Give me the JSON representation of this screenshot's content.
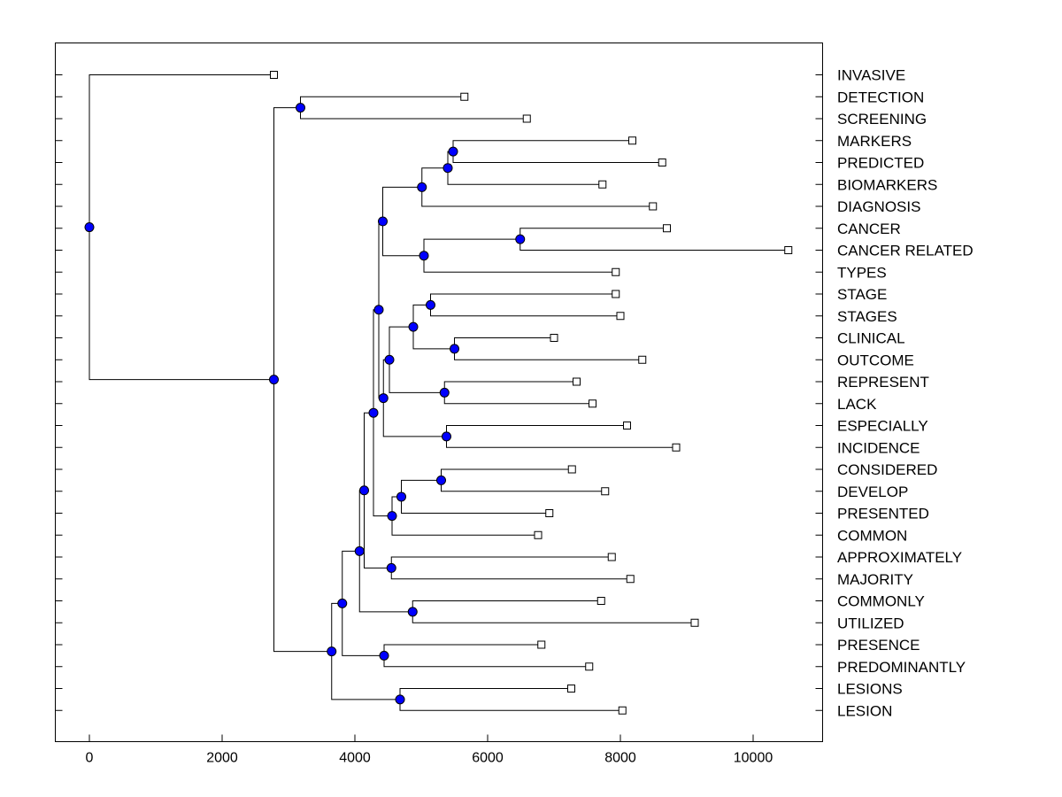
{
  "chart_data": {
    "type": "dendrogram",
    "title": "",
    "xlabel": "",
    "ylabel": "",
    "xlim": [
      -500,
      11000
    ],
    "xticks": [
      0,
      2000,
      4000,
      6000,
      8000,
      10000
    ],
    "xtick_labels": [
      "0",
      "2000",
      "4000",
      "6000",
      "8000",
      "10000"
    ],
    "colors": {
      "node": "#0000ff",
      "line": "#000000",
      "leaf_fill": "#ffffff"
    },
    "leaves": [
      {
        "label": "INVASIVE",
        "x": 2780
      },
      {
        "label": "DETECTION",
        "x": 5650
      },
      {
        "label": "SCREENING",
        "x": 6590
      },
      {
        "label": "MARKERS",
        "x": 8180
      },
      {
        "label": "PREDICTED",
        "x": 8630
      },
      {
        "label": "BIOMARKERS",
        "x": 7730
      },
      {
        "label": "DIAGNOSIS",
        "x": 8490
      },
      {
        "label": "CANCER",
        "x": 8700
      },
      {
        "label": "CANCER RELATED",
        "x": 10530
      },
      {
        "label": "TYPES",
        "x": 7930
      },
      {
        "label": "STAGE",
        "x": 7930
      },
      {
        "label": "STAGES",
        "x": 8000
      },
      {
        "label": "CLINICAL",
        "x": 7000
      },
      {
        "label": "OUTCOME",
        "x": 8330
      },
      {
        "label": "REPRESENT",
        "x": 7340
      },
      {
        "label": "LACK",
        "x": 7580
      },
      {
        "label": "ESPECIALLY",
        "x": 8100
      },
      {
        "label": "INCIDENCE",
        "x": 8840
      },
      {
        "label": "CONSIDERED",
        "x": 7270
      },
      {
        "label": "DEVELOP",
        "x": 7770
      },
      {
        "label": "PRESENTED",
        "x": 6930
      },
      {
        "label": "COMMON",
        "x": 6760
      },
      {
        "label": "APPROXIMATELY",
        "x": 7870
      },
      {
        "label": "MAJORITY",
        "x": 8150
      },
      {
        "label": "COMMONLY",
        "x": 7710
      },
      {
        "label": "UTILIZED",
        "x": 9120
      },
      {
        "label": "PRESENCE",
        "x": 6810
      },
      {
        "label": "PREDOMINANTLY",
        "x": 7530
      },
      {
        "label": "LESIONS",
        "x": 7260
      },
      {
        "label": "LESION",
        "x": 8030
      }
    ],
    "merges": [
      {
        "id": "n_det_scr",
        "x": 3180,
        "children": [
          "L1",
          "L2"
        ]
      },
      {
        "id": "n_mk_pr",
        "x": 5480,
        "children": [
          "L3",
          "L4"
        ]
      },
      {
        "id": "n_mpb",
        "x": 5400,
        "children": [
          "n_mk_pr",
          "L5"
        ]
      },
      {
        "id": "n_mpbd",
        "x": 5010,
        "children": [
          "n_mpb",
          "L6"
        ]
      },
      {
        "id": "n_can_cr",
        "x": 6490,
        "children": [
          "L7",
          "L8"
        ]
      },
      {
        "id": "n_cct",
        "x": 5040,
        "children": [
          "n_can_cr",
          "L9"
        ]
      },
      {
        "id": "n_grpA",
        "x": 4420,
        "children": [
          "n_mpbd",
          "n_cct"
        ]
      },
      {
        "id": "n_stg",
        "x": 5140,
        "children": [
          "L10",
          "L11"
        ]
      },
      {
        "id": "n_clo",
        "x": 5500,
        "children": [
          "L12",
          "L13"
        ]
      },
      {
        "id": "n_stc",
        "x": 4880,
        "children": [
          "n_stg",
          "n_clo"
        ]
      },
      {
        "id": "n_rep_lack",
        "x": 5350,
        "children": [
          "L14",
          "L15"
        ]
      },
      {
        "id": "n_grpB1",
        "x": 4520,
        "children": [
          "n_stc",
          "n_rep_lack"
        ]
      },
      {
        "id": "n_esp_inc",
        "x": 5380,
        "children": [
          "L16",
          "L17"
        ]
      },
      {
        "id": "n_grpB",
        "x": 4430,
        "children": [
          "n_grpB1",
          "n_esp_inc"
        ]
      },
      {
        "id": "n_AB",
        "x": 4360,
        "children": [
          "n_grpA",
          "n_grpB"
        ]
      },
      {
        "id": "n_con_dev",
        "x": 5300,
        "children": [
          "L18",
          "L19"
        ]
      },
      {
        "id": "n_cdp",
        "x": 4700,
        "children": [
          "n_con_dev",
          "L20"
        ]
      },
      {
        "id": "n_cdpc",
        "x": 4560,
        "children": [
          "n_cdp",
          "L21"
        ]
      },
      {
        "id": "n_ABC",
        "x": 4280,
        "children": [
          "n_AB",
          "n_cdpc"
        ]
      },
      {
        "id": "n_app_maj",
        "x": 4550,
        "children": [
          "L22",
          "L23"
        ]
      },
      {
        "id": "n_ABCD",
        "x": 4140,
        "children": [
          "n_ABC",
          "n_app_maj"
        ]
      },
      {
        "id": "n_com_util",
        "x": 4870,
        "children": [
          "L24",
          "L25"
        ]
      },
      {
        "id": "n_ABCDE",
        "x": 4070,
        "children": [
          "n_ABCD",
          "n_com_util"
        ]
      },
      {
        "id": "n_pres_pred",
        "x": 4440,
        "children": [
          "L26",
          "L27"
        ]
      },
      {
        "id": "n_F",
        "x": 3810,
        "children": [
          "n_ABCDE",
          "n_pres_pred"
        ]
      },
      {
        "id": "n_les",
        "x": 4680,
        "children": [
          "L28",
          "L29"
        ]
      },
      {
        "id": "n_G",
        "x": 3650,
        "children": [
          "n_F",
          "n_les"
        ]
      },
      {
        "id": "n_H",
        "x": 2780,
        "children": [
          "n_det_scr",
          "n_G"
        ]
      },
      {
        "id": "n_root",
        "x": 0,
        "children": [
          "L0",
          "n_H"
        ]
      }
    ]
  }
}
